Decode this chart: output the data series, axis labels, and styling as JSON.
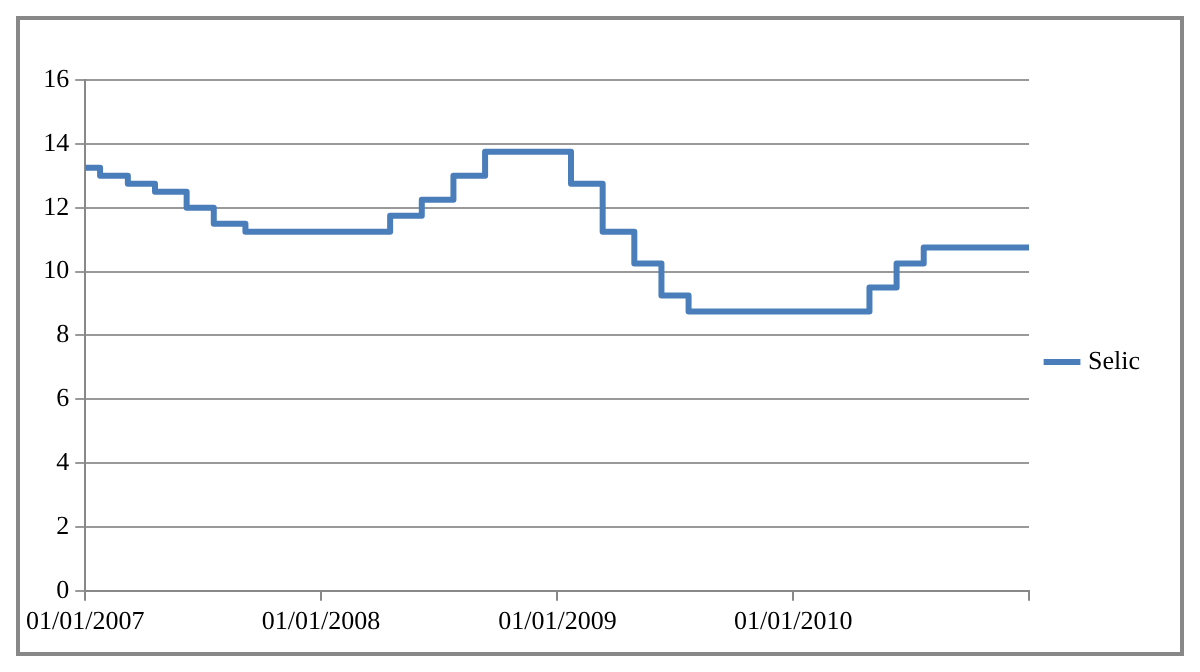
{
  "chart_data": {
    "type": "step",
    "x": [
      "2007-01-01",
      "2007-01-24",
      "2007-03-08",
      "2007-04-19",
      "2007-06-07",
      "2007-07-19",
      "2007-09-06",
      "2008-04-17",
      "2008-06-05",
      "2008-07-24",
      "2008-09-11",
      "2009-01-22",
      "2009-03-12",
      "2009-04-30",
      "2009-06-11",
      "2009-07-23",
      "2010-04-29",
      "2010-06-10",
      "2010-07-22",
      "2011-01-01"
    ],
    "series": [
      {
        "name": "Selic",
        "color": "#4a7ebb",
        "values": [
          13.25,
          13,
          12.75,
          12.5,
          12,
          11.5,
          11.25,
          11.75,
          12.25,
          13,
          13.75,
          12.75,
          11.25,
          10.25,
          9.25,
          8.75,
          9.5,
          10.25,
          10.75,
          10.75
        ]
      }
    ],
    "xlim": [
      "2007-01-01",
      "2011-01-01"
    ],
    "xticks": [
      {
        "value": "2007-01-01",
        "label": "01/01/2007"
      },
      {
        "value": "2008-01-01",
        "label": "01/01/2008"
      },
      {
        "value": "2009-01-01",
        "label": "01/01/2009"
      },
      {
        "value": "2010-01-01",
        "label": "01/01/2010"
      },
      {
        "value": "2011-01-01",
        "label": null
      }
    ],
    "ylim": [
      0,
      16
    ],
    "yticks": [
      0,
      2,
      4,
      6,
      8,
      10,
      12,
      14,
      16
    ],
    "grid": "y",
    "legend": "right",
    "marker": "none",
    "line_style": "solid"
  }
}
